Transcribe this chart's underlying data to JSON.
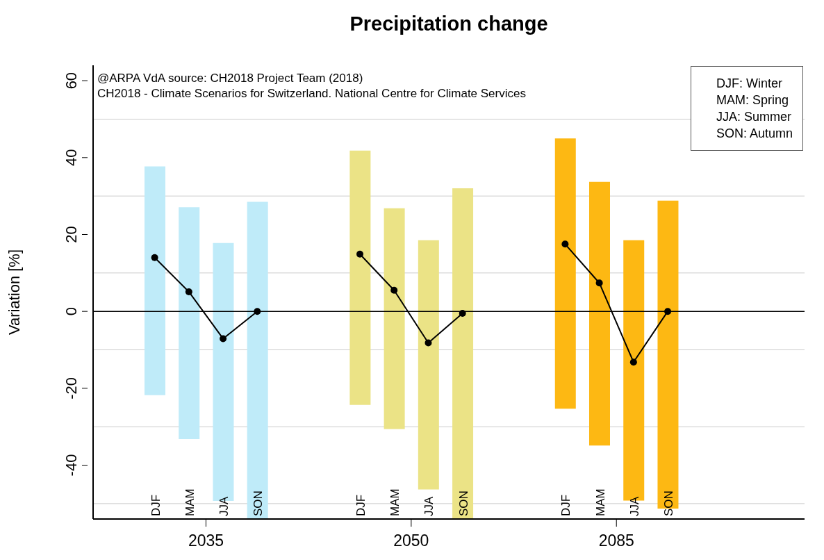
{
  "chart_data": {
    "type": "bar",
    "title": "Precipitation change",
    "ylabel": "Variation [%]",
    "categories": [
      "DJF",
      "MAM",
      "JJA",
      "SON",
      null,
      null,
      "DJF",
      "MAM",
      "JJA",
      "SON",
      null,
      null,
      "DJF",
      "MAM",
      "JJA",
      "SON"
    ],
    "series": [
      {
        "values": [
          59.5,
          60.3,
          67.1,
          82.5,
          null,
          null,
          66.1,
          57.4,
          64.8,
          86,
          null,
          null,
          70.3,
          68.6,
          67.7,
          80.1
        ],
        "base": [
          -21.8,
          -33.2,
          -49.3,
          -54,
          null,
          null,
          -24.3,
          -30.6,
          -46.3,
          -54,
          null,
          null,
          -25.3,
          -34.9,
          -49.2,
          -51.3
        ],
        "colors": [
          "#bfebf9",
          "#bfebf9",
          "#bfebf9",
          "#bfebf9",
          null,
          null,
          "#ebe386",
          "#ebe386",
          "#ebe386",
          "#ebe386",
          null,
          null,
          "#fdb813",
          "#fdb813",
          "#fdb813",
          "#fdb813"
        ]
      },
      {
        "type": "line",
        "color": "#000000",
        "values": [
          14,
          5.1,
          -7.1,
          0,
          null,
          null,
          14.9,
          5.5,
          -8.2,
          -0.5,
          null,
          null,
          17.5,
          7.4,
          -13.2,
          0
        ]
      }
    ],
    "marker": "circle",
    "ylim": [
      -54,
      64
    ],
    "yticks": [
      {
        "value": -50,
        "label": null
      },
      -40,
      {
        "value": -30,
        "label": null
      },
      -20,
      {
        "value": -10,
        "label": null
      },
      0,
      {
        "value": 10,
        "label": null
      },
      20,
      {
        "value": 30,
        "label": null
      },
      40,
      {
        "value": 50,
        "label": null
      },
      60
    ],
    "grid": "y",
    "ref_lines": [
      {
        "axis": "y",
        "value": 0,
        "color": "#000000"
      }
    ],
    "annotations": [
      "@ARPA VdA source: CH2018 Project Team (2018)",
      "CH2018 - Climate Scenarios for Switzerland. National Centre for Climate Services",
      "DJF: Winter",
      "MAM: Spring",
      "JJA: Summer",
      "SON: Autumn",
      "2035",
      "2050",
      "2085"
    ]
  }
}
